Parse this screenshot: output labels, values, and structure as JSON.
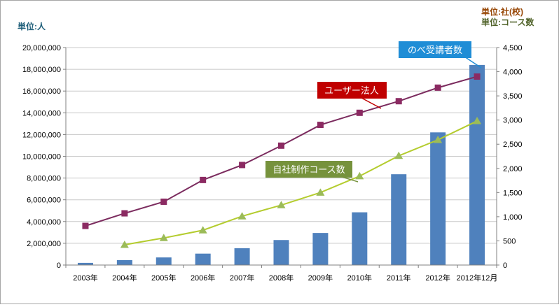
{
  "colors": {
    "bar": "#4f81bd",
    "users_line": "#7b2b5e",
    "users_marker": "#8b2a62",
    "course_line": "#b4cc2e",
    "course_marker": "#9bbb59",
    "callout_students": "#1f8dd6",
    "callout_users": "#c00000",
    "callout_courses": "#76923c",
    "unit_left": "#1f5f7a",
    "unit_right_1": "#984807",
    "unit_right_2": "#4f6228",
    "grid": "#c8c8c8",
    "axis": "#808080"
  },
  "chart_data": {
    "type": "bar+line",
    "categories": [
      "2003年",
      "2004年",
      "2005年",
      "2006年",
      "2007年",
      "2008年",
      "2009年",
      "2010年",
      "2011年",
      "2012年",
      "2012年12月"
    ],
    "left_axis": {
      "unit_label": "単位:人",
      "ylim": [
        0,
        20000000
      ],
      "ticks": [
        0,
        2000000,
        4000000,
        6000000,
        8000000,
        10000000,
        12000000,
        14000000,
        16000000,
        18000000,
        20000000
      ],
      "tick_labels": [
        "0",
        "2,000,000",
        "4,000,000",
        "6,000,000",
        "8,000,000",
        "10,000,000",
        "12,000,000",
        "14,000,000",
        "16,000,000",
        "18,000,000",
        "20,000,000"
      ]
    },
    "right_axis": {
      "unit_label_1": "単位:社(校)",
      "unit_label_2": "単位:コース数",
      "ylim": [
        0,
        4500
      ],
      "ticks": [
        0,
        500,
        1000,
        1500,
        2000,
        2500,
        3000,
        3500,
        4000,
        4500
      ],
      "tick_labels": [
        "0",
        "500",
        "1,000",
        "1,500",
        "2,000",
        "2,500",
        "3,000",
        "3,500",
        "4,000",
        "4,500"
      ]
    },
    "series": [
      {
        "name": "のべ受講者数",
        "type": "bar",
        "axis": "left",
        "values": [
          200000,
          450000,
          700000,
          1050000,
          1550000,
          2300000,
          2950000,
          4850000,
          8350000,
          12200000,
          18400000
        ]
      },
      {
        "name": "ユーザー法人",
        "type": "line",
        "axis": "right",
        "marker": "square",
        "values": [
          810,
          1070,
          1310,
          1760,
          2070,
          2470,
          2900,
          3150,
          3390,
          3670,
          3900
        ]
      },
      {
        "name": "自社制作コース数",
        "type": "line",
        "axis": "right",
        "marker": "triangle",
        "values": [
          null,
          420,
          560,
          720,
          1010,
          1240,
          1500,
          1840,
          2260,
          2590,
          2980
        ]
      }
    ],
    "callouts": {
      "students": "のべ受講者数",
      "users": "ユーザー法人",
      "courses": "自社制作コース数"
    },
    "grid": true
  }
}
